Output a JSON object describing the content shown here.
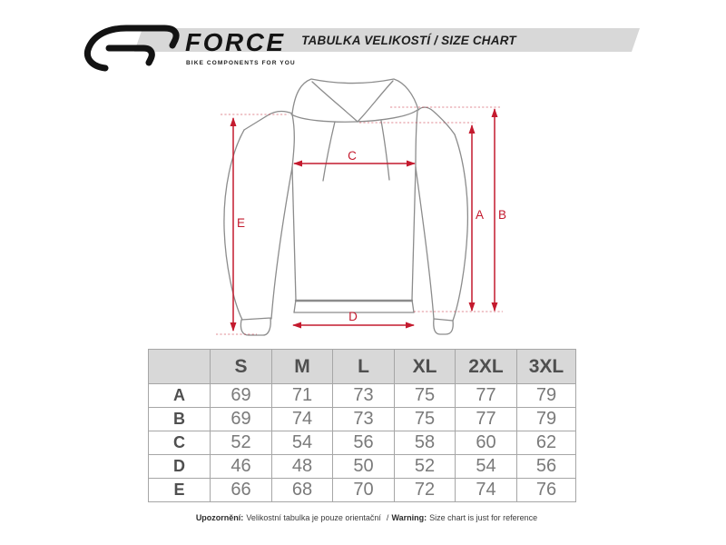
{
  "header": {
    "brand": {
      "name": "FORCE",
      "tagline": "BIKE COMPONENTS FOR YOU"
    },
    "title": "TABULKA VELIKOSTÍ / SIZE CHART"
  },
  "diagram": {
    "description": "hoodie measurement drawing",
    "dims": {
      "a": "A",
      "b": "B",
      "c": "C",
      "d": "D",
      "e": "E"
    }
  },
  "size_table": {
    "columns": [
      "S",
      "M",
      "L",
      "XL",
      "2XL",
      "3XL"
    ],
    "rows": [
      {
        "label": "A",
        "values": [
          69,
          71,
          73,
          75,
          77,
          79
        ]
      },
      {
        "label": "B",
        "values": [
          69,
          74,
          73,
          75,
          77,
          79
        ]
      },
      {
        "label": "C",
        "values": [
          52,
          54,
          56,
          58,
          60,
          62
        ]
      },
      {
        "label": "D",
        "values": [
          46,
          48,
          50,
          52,
          54,
          56
        ]
      },
      {
        "label": "E",
        "values": [
          66,
          68,
          70,
          72,
          74,
          76
        ]
      }
    ]
  },
  "footer": {
    "label_cs": "Upozornění:",
    "text_cs": "Velikostní tabulka je pouze orientační",
    "separator": "/",
    "label_en": "Warning:",
    "text_en": "Size chart is just for reference"
  },
  "colors": {
    "accent_red": "#c41a2e",
    "band_gray": "#d8d8d8",
    "outline_gray": "#8c8c8c",
    "table_border": "#a6a6a6",
    "logo_black": "#131313"
  }
}
